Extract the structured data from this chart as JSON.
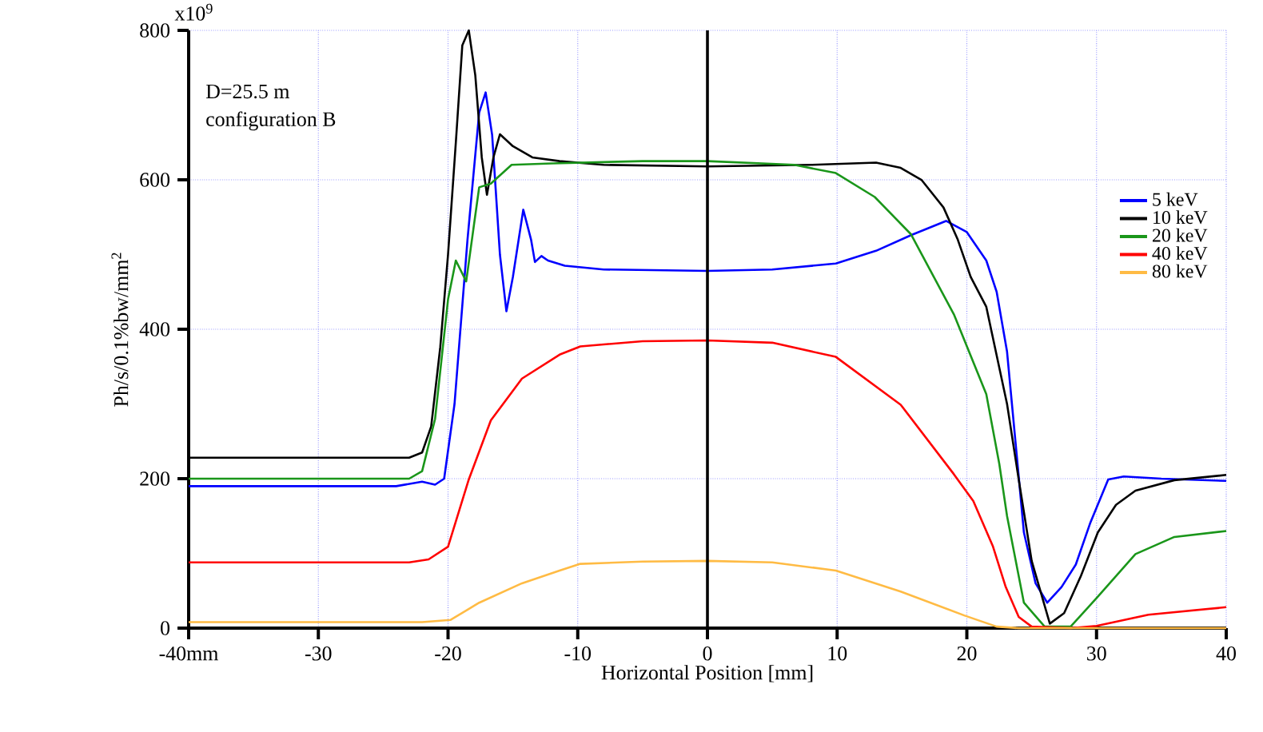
{
  "chart_data": {
    "type": "line",
    "xlabel": "Horizontal Position [mm]",
    "ylabel": "Ph/s/0.1%bw/mm$^{2}$",
    "annotations": [
      "D=25.5 m",
      "configuration B",
      "x10$^{9}$"
    ],
    "xlim": [
      -40,
      40
    ],
    "ylim": [
      0,
      800
    ],
    "xticks": [
      {
        "value": -40,
        "label": "-40mm"
      },
      -30,
      -20,
      -10,
      0,
      10,
      20,
      30,
      40
    ],
    "yticks": [
      0,
      200,
      400,
      600,
      800
    ],
    "grid": true,
    "legend": "right",
    "line_style": "solid",
    "marker": "none",
    "ref_lines": [
      {
        "axis": "x",
        "value": 0,
        "color": "#000000"
      }
    ],
    "series": [
      {
        "name": "5 keV",
        "color": "#0000ff",
        "x": [
          -40,
          -24,
          -22,
          -21,
          -20.3,
          -19.5,
          -18.5,
          -17.6,
          -17.1,
          -16.6,
          -16,
          -15.5,
          -15,
          -14.2,
          -13.6,
          -13.3,
          -12.8,
          -12.3,
          -11,
          -8,
          0,
          5,
          9.9,
          13,
          15.7,
          18.4,
          20,
          21.5,
          22.3,
          23.1,
          23.8,
          24.4,
          25.3,
          26.2,
          27.3,
          28.4,
          29.5,
          30.9,
          32.1,
          35,
          40
        ],
        "values": [
          190,
          190,
          196,
          192,
          200,
          300,
          520,
          690,
          717,
          660,
          500,
          424,
          470,
          560,
          520,
          490,
          498,
          492,
          485,
          480,
          478,
          480,
          488,
          505,
          526,
          545,
          530,
          492,
          450,
          370,
          240,
          128,
          60,
          34,
          55,
          85,
          140,
          199,
          203,
          200,
          197
        ]
      },
      {
        "name": "10 keV",
        "color": "#000000",
        "x": [
          -40,
          -23,
          -22,
          -21.3,
          -20.6,
          -20,
          -19.4,
          -18.9,
          -18.4,
          -17.9,
          -17.4,
          -17,
          -16.5,
          -16,
          -15,
          -13.5,
          -11.4,
          -8,
          0,
          8,
          13,
          14.9,
          16.5,
          18.2,
          19.3,
          20.3,
          21.5,
          23.1,
          24,
          25,
          26.4,
          27.5,
          28.8,
          30.1,
          31.5,
          33,
          36,
          40
        ],
        "values": [
          228,
          228,
          235,
          270,
          376,
          500,
          650,
          780,
          800,
          740,
          630,
          580,
          630,
          661,
          645,
          630,
          625,
          620,
          618,
          620,
          623,
          616,
          600,
          563,
          520,
          470,
          430,
          300,
          199,
          90,
          6,
          20,
          70,
          128,
          165,
          184,
          198,
          205
        ]
      },
      {
        "name": "20 keV",
        "color": "#1a961a",
        "x": [
          -40,
          -23,
          -22,
          -21,
          -20,
          -19.4,
          -18.6,
          -18,
          -17.6,
          -16.7,
          -15.1,
          -12,
          -5,
          0,
          6.7,
          9.9,
          12.9,
          15.7,
          19,
          21.5,
          22.5,
          23.1,
          24.4,
          26,
          28,
          30.1,
          33,
          36,
          40
        ],
        "values": [
          200,
          200,
          210,
          280,
          440,
          492,
          464,
          540,
          590,
          595,
          620,
          622,
          625,
          625,
          620,
          609,
          577,
          527,
          420,
          313,
          220,
          150,
          34,
          2,
          2,
          42,
          99,
          122,
          130
        ]
      },
      {
        "name": "40 keV",
        "color": "#ff0000",
        "x": [
          -40,
          -23,
          -21.5,
          -20,
          -18.4,
          -16.7,
          -14.3,
          -11.4,
          -9.8,
          -5,
          0,
          5,
          9.9,
          14.9,
          19,
          20.5,
          22,
          23,
          24,
          25,
          28,
          30,
          34,
          40
        ],
        "values": [
          88,
          88,
          92,
          109,
          199,
          278,
          334,
          366,
          377,
          384,
          385,
          382,
          363,
          299,
          206,
          170,
          110,
          55,
          15,
          2,
          0,
          3,
          18,
          28
        ]
      },
      {
        "name": "80 keV",
        "color": "#ffbb44",
        "x": [
          -40,
          -22,
          -19.8,
          -17.6,
          -14.3,
          -11.4,
          -9.8,
          -5,
          0,
          5,
          9.9,
          14.9,
          19.8,
          22.3,
          24,
          40
        ],
        "values": [
          8,
          8,
          11,
          34,
          60,
          77,
          86,
          89,
          90,
          88,
          77,
          49,
          17,
          2,
          0,
          0
        ]
      }
    ]
  }
}
